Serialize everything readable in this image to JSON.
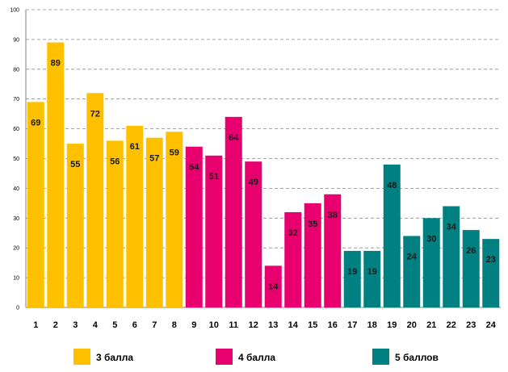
{
  "chart_data": {
    "type": "bar",
    "categories": [
      "1",
      "2",
      "3",
      "4",
      "5",
      "6",
      "7",
      "8",
      "9",
      "10",
      "11",
      "12",
      "13",
      "14",
      "15",
      "16",
      "17",
      "18",
      "19",
      "20",
      "21",
      "22",
      "23",
      "24"
    ],
    "series": [
      {
        "name": "3 балла",
        "color": "#FFC000",
        "index_range": [
          0,
          7
        ]
      },
      {
        "name": "4 балла",
        "color": "#E8006E",
        "index_range": [
          8,
          15
        ]
      },
      {
        "name": "5 баллов",
        "color": "#008080",
        "index_range": [
          16,
          23
        ]
      }
    ],
    "values": [
      69,
      89,
      55,
      72,
      56,
      61,
      57,
      59,
      54,
      51,
      64,
      49,
      14,
      32,
      35,
      38,
      19,
      19,
      48,
      24,
      30,
      34,
      26,
      23
    ],
    "ylim": [
      0,
      100
    ],
    "yticks": [
      0,
      10,
      20,
      30,
      40,
      50,
      60,
      70,
      80,
      90,
      100
    ],
    "grid": true,
    "data_labels": true,
    "legend_position": "bottom"
  }
}
